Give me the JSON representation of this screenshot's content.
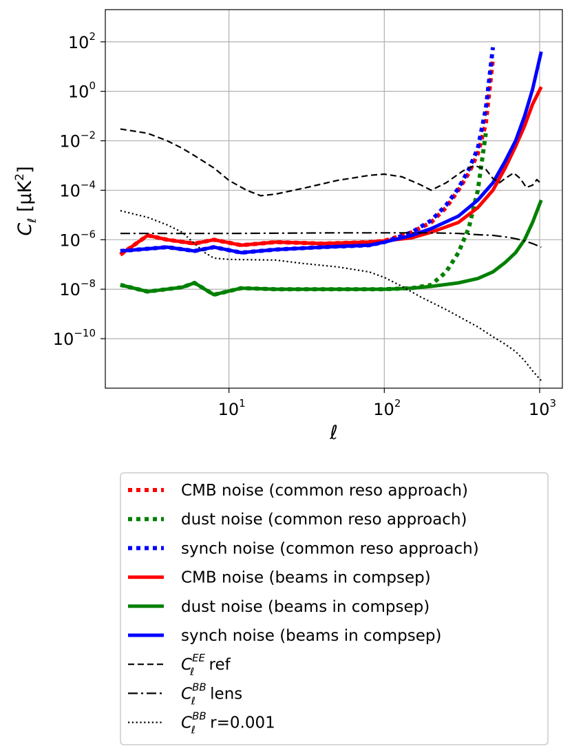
{
  "chart_data": {
    "type": "line",
    "xscale": "log",
    "yscale": "log",
    "xlim": [
      1.6,
      1400
    ],
    "ylim": [
      1e-12,
      2000
    ],
    "grid": true,
    "xlabel": "ℓ",
    "ylabel": {
      "main": "C",
      "sub": "ℓ",
      "unit_open": " [μK",
      "unit_sup": "2",
      "unit_close": "]"
    },
    "xticks": [
      {
        "value": 10,
        "base": "10",
        "exp": "1"
      },
      {
        "value": 100,
        "base": "10",
        "exp": "2"
      },
      {
        "value": 1000,
        "base": "10",
        "exp": "3"
      }
    ],
    "yticks": [
      {
        "value": 100,
        "base": "10",
        "exp": "2"
      },
      {
        "value": 1,
        "base": "10",
        "exp": "0"
      },
      {
        "value": 0.01,
        "base": "10",
        "exp": "−2"
      },
      {
        "value": 0.0001,
        "base": "10",
        "exp": "−4"
      },
      {
        "value": 1e-06,
        "base": "10",
        "exp": "−6"
      },
      {
        "value": 1e-08,
        "base": "10",
        "exp": "−8"
      },
      {
        "value": 1e-10,
        "base": "10",
        "exp": "−10"
      }
    ],
    "legend_position": "below",
    "series": [
      {
        "name": "CMB noise (common reso approach)",
        "color": "#ff0000",
        "style": "dotted-thick",
        "points": [
          [
            2,
            2.5e-07
          ],
          [
            3,
            1.5e-06
          ],
          [
            4,
            1e-06
          ],
          [
            6,
            7e-07
          ],
          [
            8,
            1e-06
          ],
          [
            12,
            6e-07
          ],
          [
            20,
            8e-07
          ],
          [
            40,
            7e-07
          ],
          [
            80,
            8e-07
          ],
          [
            100,
            9e-07
          ],
          [
            150,
            2e-06
          ],
          [
            200,
            5e-06
          ],
          [
            250,
            2e-05
          ],
          [
            300,
            0.0001
          ],
          [
            350,
            0.0005
          ],
          [
            400,
            0.003
          ],
          [
            450,
            0.05
          ],
          [
            500,
            20
          ]
        ]
      },
      {
        "name": "dust noise (common reso approach)",
        "color": "#008000",
        "style": "dotted-thick",
        "points": [
          [
            2,
            1.5e-08
          ],
          [
            3,
            8e-09
          ],
          [
            5,
            1.2e-08
          ],
          [
            6,
            1.8e-08
          ],
          [
            8,
            6e-09
          ],
          [
            12,
            1.1e-08
          ],
          [
            20,
            1e-08
          ],
          [
            50,
            1e-08
          ],
          [
            100,
            1e-08
          ],
          [
            150,
            1.1e-08
          ],
          [
            200,
            1.5e-08
          ],
          [
            250,
            5e-08
          ],
          [
            300,
            3e-07
          ],
          [
            350,
            3e-06
          ],
          [
            400,
            0.0001
          ],
          [
            450,
            0.02
          ]
        ]
      },
      {
        "name": "synch noise (common reso approach)",
        "color": "#0000ff",
        "style": "dotted-thick",
        "points": [
          [
            2,
            3.5e-07
          ],
          [
            4,
            5e-07
          ],
          [
            6,
            3.5e-07
          ],
          [
            8,
            5e-07
          ],
          [
            12,
            3e-07
          ],
          [
            20,
            4e-07
          ],
          [
            40,
            5e-07
          ],
          [
            80,
            6e-07
          ],
          [
            100,
            8e-07
          ],
          [
            150,
            2e-06
          ],
          [
            200,
            6e-06
          ],
          [
            250,
            2.5e-05
          ],
          [
            300,
            0.00012
          ],
          [
            350,
            0.0007
          ],
          [
            400,
            0.005
          ],
          [
            450,
            0.2
          ],
          [
            500,
            60
          ]
        ]
      },
      {
        "name": "CMB noise (beams in compsep)",
        "color": "#ff0000",
        "style": "solid-thick",
        "points": [
          [
            2,
            2.5e-07
          ],
          [
            3,
            1.5e-06
          ],
          [
            4,
            1e-06
          ],
          [
            6,
            7e-07
          ],
          [
            8,
            1e-06
          ],
          [
            12,
            6e-07
          ],
          [
            20,
            8e-07
          ],
          [
            40,
            7e-07
          ],
          [
            80,
            8e-07
          ],
          [
            100,
            9e-07
          ],
          [
            150,
            1.2e-06
          ],
          [
            200,
            2e-06
          ],
          [
            300,
            5e-06
          ],
          [
            400,
            2e-05
          ],
          [
            500,
            0.0001
          ],
          [
            600,
            0.0008
          ],
          [
            700,
            0.006
          ],
          [
            800,
            0.04
          ],
          [
            900,
            0.3
          ],
          [
            1024,
            1.5
          ]
        ]
      },
      {
        "name": "dust noise (beams in compsep)",
        "color": "#008000",
        "style": "solid-thick",
        "points": [
          [
            2,
            1.5e-08
          ],
          [
            3,
            8e-09
          ],
          [
            5,
            1.2e-08
          ],
          [
            6,
            1.8e-08
          ],
          [
            8,
            6e-09
          ],
          [
            12,
            1.1e-08
          ],
          [
            20,
            1e-08
          ],
          [
            50,
            1e-08
          ],
          [
            100,
            1e-08
          ],
          [
            150,
            1.1e-08
          ],
          [
            200,
            1.3e-08
          ],
          [
            300,
            1.8e-08
          ],
          [
            400,
            2.7e-08
          ],
          [
            500,
            5e-08
          ],
          [
            600,
            1.2e-07
          ],
          [
            700,
            3e-07
          ],
          [
            800,
            1e-06
          ],
          [
            900,
            5e-06
          ],
          [
            1024,
            4e-05
          ]
        ]
      },
      {
        "name": "synch noise (beams in compsep)",
        "color": "#0000ff",
        "style": "solid-thick",
        "points": [
          [
            2,
            3.5e-07
          ],
          [
            4,
            5e-07
          ],
          [
            6,
            3.5e-07
          ],
          [
            8,
            5e-07
          ],
          [
            12,
            3e-07
          ],
          [
            20,
            4e-07
          ],
          [
            40,
            5e-07
          ],
          [
            80,
            6e-07
          ],
          [
            100,
            8e-07
          ],
          [
            150,
            1.5e-06
          ],
          [
            200,
            2.8e-06
          ],
          [
            300,
            9e-06
          ],
          [
            400,
            4e-05
          ],
          [
            500,
            0.0002
          ],
          [
            600,
            0.0015
          ],
          [
            700,
            0.01
          ],
          [
            800,
            0.1
          ],
          [
            900,
            1.2
          ],
          [
            1024,
            40
          ]
        ]
      },
      {
        "name_main": "C",
        "name_sub": "ℓ",
        "name_sup": "EE",
        "name_rest": " ref",
        "color": "#000000",
        "style": "dashed",
        "points": [
          [
            2,
            0.03
          ],
          [
            3,
            0.02
          ],
          [
            4,
            0.01
          ],
          [
            5,
            0.005
          ],
          [
            6,
            0.0025
          ],
          [
            8,
            0.0008
          ],
          [
            10,
            0.00025
          ],
          [
            13,
            0.0001
          ],
          [
            16,
            6e-05
          ],
          [
            20,
            7e-05
          ],
          [
            30,
            0.00012
          ],
          [
            50,
            0.00025
          ],
          [
            80,
            0.0004
          ],
          [
            100,
            0.00045
          ],
          [
            130,
            0.00035
          ],
          [
            170,
            0.00017
          ],
          [
            200,
            0.0001
          ],
          [
            250,
            0.0002
          ],
          [
            320,
            0.0006
          ],
          [
            380,
            0.001
          ],
          [
            450,
            0.0007
          ],
          [
            500,
            0.0003
          ],
          [
            550,
            0.0002
          ],
          [
            600,
            0.0003
          ],
          [
            680,
            0.0005
          ],
          [
            750,
            0.0003
          ],
          [
            820,
            0.00013
          ],
          [
            900,
            0.00016
          ],
          [
            960,
            0.00027
          ],
          [
            1024,
            0.00018
          ]
        ]
      },
      {
        "name_main": "C",
        "name_sub": "ℓ",
        "name_sup": "BB",
        "name_rest": " lens",
        "color": "#000000",
        "style": "dashdot",
        "points": [
          [
            2,
            1.8e-06
          ],
          [
            10,
            1.8e-06
          ],
          [
            50,
            1.9e-06
          ],
          [
            100,
            1.9e-06
          ],
          [
            200,
            1.9e-06
          ],
          [
            300,
            1.8e-06
          ],
          [
            400,
            1.6e-06
          ],
          [
            500,
            1.5e-06
          ],
          [
            600,
            1.3e-06
          ],
          [
            700,
            1.1e-06
          ],
          [
            800,
            9e-07
          ],
          [
            900,
            7e-07
          ],
          [
            1024,
            5e-07
          ]
        ]
      },
      {
        "name_main": "C",
        "name_sub": "ℓ",
        "name_sup": "BB",
        "name_rest": " r=0.001",
        "color": "#000000",
        "style": "dotted",
        "points": [
          [
            2,
            1.5e-05
          ],
          [
            3,
            8e-06
          ],
          [
            4,
            4e-06
          ],
          [
            5,
            2e-06
          ],
          [
            6,
            7e-07
          ],
          [
            7,
            3e-07
          ],
          [
            8,
            1.8e-07
          ],
          [
            10,
            1.6e-07
          ],
          [
            20,
            1.5e-07
          ],
          [
            30,
            1.1e-07
          ],
          [
            50,
            8e-08
          ],
          [
            80,
            5e-08
          ],
          [
            100,
            3e-08
          ],
          [
            130,
            1.3e-08
          ],
          [
            170,
            5e-09
          ],
          [
            200,
            3e-09
          ],
          [
            250,
            1.5e-09
          ],
          [
            300,
            8e-10
          ],
          [
            400,
            3e-10
          ],
          [
            500,
            1.2e-10
          ],
          [
            600,
            6e-11
          ],
          [
            700,
            3e-11
          ],
          [
            800,
            1.3e-11
          ],
          [
            900,
            5e-12
          ],
          [
            1024,
            2e-12
          ]
        ]
      }
    ]
  }
}
